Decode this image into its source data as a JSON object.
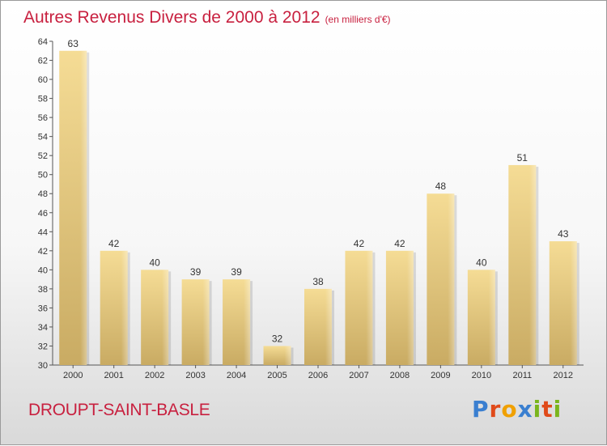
{
  "header": {
    "title": "Autres Revenus Divers de 2000 à 2012",
    "subtitle": "(en milliers d'€)"
  },
  "footer": {
    "city": "DROUPT-SAINT-BASLE",
    "logo": "Proxiti"
  },
  "colors": {
    "title": "#c8203f",
    "bar_light": "#f5dc95",
    "bar_dark": "#c9ab63",
    "logo": [
      "#3a7fd0",
      "#e04a1a",
      "#f0a000",
      "#3a7fd0",
      "#7ab51d",
      "#e04a1a",
      "#7ab51d"
    ]
  },
  "chart_data": {
    "type": "bar",
    "title": "Autres Revenus Divers de 2000 à 2012",
    "subtitle": "(en milliers d'€)",
    "categories": [
      "2000",
      "2001",
      "2002",
      "2003",
      "2004",
      "2005",
      "2006",
      "2007",
      "2008",
      "2009",
      "2010",
      "2011",
      "2012"
    ],
    "values": [
      63,
      42,
      40,
      39,
      39,
      32,
      38,
      42,
      42,
      48,
      40,
      51,
      43
    ],
    "ylim": [
      30,
      64
    ],
    "yticks": [
      30,
      32,
      34,
      36,
      38,
      40,
      42,
      44,
      46,
      48,
      50,
      52,
      54,
      56,
      58,
      60,
      62,
      64
    ],
    "grid": false,
    "legend": "none"
  }
}
